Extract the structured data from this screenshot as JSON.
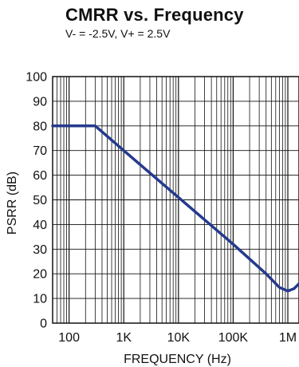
{
  "chart_data": {
    "type": "line",
    "title": "CMRR vs. Frequency",
    "subtitle": "V- = -2.5V, V+ = 2.5V",
    "xlabel": "FREQUENCY (Hz)",
    "ylabel": "PSRR (dB)",
    "xscale": "log",
    "xlim": [
      50,
      1600000
    ],
    "ylim": [
      0,
      100
    ],
    "grid": true,
    "x_ticks": [
      {
        "value": 100,
        "label": "100"
      },
      {
        "value": 1000,
        "label": "1K"
      },
      {
        "value": 10000,
        "label": "10K"
      },
      {
        "value": 100000,
        "label": "100K"
      },
      {
        "value": 1000000,
        "label": "1M"
      }
    ],
    "y_ticks": [
      0,
      10,
      20,
      30,
      40,
      50,
      60,
      70,
      80,
      90,
      100
    ],
    "series": [
      {
        "color": "#243a8c",
        "points": [
          [
            50,
            80
          ],
          [
            300,
            80
          ],
          [
            1000,
            70
          ],
          [
            10000,
            51
          ],
          [
            100000,
            32
          ],
          [
            400000,
            20
          ],
          [
            700000,
            14.5
          ],
          [
            1000000,
            13
          ],
          [
            1300000,
            14
          ],
          [
            1600000,
            16
          ]
        ]
      }
    ]
  }
}
